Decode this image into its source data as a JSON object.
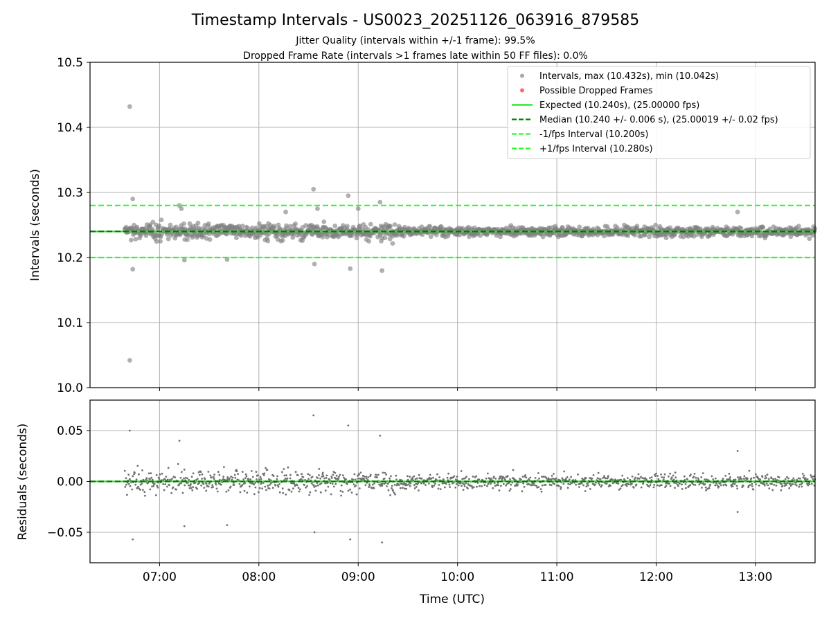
{
  "title": "Timestamp Intervals - US0023_20251126_063916_879585",
  "subtitle1": "Jitter Quality (intervals within +/-1 frame): 99.5%",
  "subtitle2": "Dropped Frame Rate (intervals >1 frames late within 50 FF files): 0.0%",
  "colors": {
    "points": "#808080",
    "dropped": "#ff6b6b",
    "expected": "#1ee61e",
    "median": "#007a00",
    "interval": "#22ff22",
    "grid": "#b0b0b0"
  },
  "chart_data": [
    {
      "type": "scatter",
      "panel": "intervals",
      "ylabel": "Intervals (seconds)",
      "xlabel": "",
      "ylim": [
        10.0,
        10.5
      ],
      "yticks": [
        10.0,
        10.1,
        10.2,
        10.3,
        10.4,
        10.5
      ],
      "ytick_labels": [
        "10.0",
        "10.1",
        "10.2",
        "10.3",
        "10.4",
        "10.5"
      ],
      "xlim_hours": [
        6.3,
        13.6
      ],
      "xticks_hours": [
        7,
        8,
        9,
        10,
        11,
        12,
        13
      ],
      "grid": true,
      "legend_position": "top-right",
      "legend": [
        {
          "label": "Intervals, max (10.432s), min (10.042s)",
          "style": "marker",
          "color": "#a8a8a8"
        },
        {
          "label": "Possible Dropped Frames",
          "style": "marker",
          "color": "#ff6b6b"
        },
        {
          "label": "Expected (10.240s), (25.00000 fps)",
          "style": "solid",
          "color": "#1ee61e"
        },
        {
          "label": "Median (10.240 +/- 0.006 s), (25.00019 +/- 0.02 fps)",
          "style": "dashed",
          "color": "#007a00"
        },
        {
          "label": "-1/fps Interval (10.200s)",
          "style": "dashed",
          "color": "#22ff22"
        },
        {
          "label": "+1/fps Interval (10.280s)",
          "style": "dashed",
          "color": "#22ff22"
        }
      ],
      "reference_lines": [
        {
          "name": "expected",
          "y": 10.24
        },
        {
          "name": "median",
          "y": 10.24
        },
        {
          "name": "minus_one_frame",
          "y": 10.2
        },
        {
          "name": "plus_one_frame",
          "y": 10.28
        }
      ],
      "time_range_hours": [
        6.65,
        13.6
      ],
      "median": 10.24,
      "max": 10.432,
      "min": 10.042,
      "notable_points": [
        {
          "x": 6.7,
          "y": 10.432
        },
        {
          "x": 6.7,
          "y": 10.042
        },
        {
          "x": 6.73,
          "y": 10.29
        },
        {
          "x": 6.73,
          "y": 10.182
        },
        {
          "x": 7.2,
          "y": 10.28
        },
        {
          "x": 7.22,
          "y": 10.275
        },
        {
          "x": 7.25,
          "y": 10.196
        },
        {
          "x": 7.68,
          "y": 10.197
        },
        {
          "x": 8.27,
          "y": 10.27
        },
        {
          "x": 8.55,
          "y": 10.305
        },
        {
          "x": 8.56,
          "y": 10.19
        },
        {
          "x": 8.59,
          "y": 10.275
        },
        {
          "x": 8.9,
          "y": 10.295
        },
        {
          "x": 8.92,
          "y": 10.183
        },
        {
          "x": 9.0,
          "y": 10.275
        },
        {
          "x": 9.22,
          "y": 10.285
        },
        {
          "x": 9.24,
          "y": 10.18
        },
        {
          "x": 12.82,
          "y": 10.27
        }
      ]
    },
    {
      "type": "scatter",
      "panel": "residuals",
      "ylabel": "Residuals (seconds)",
      "xlabel": "Time (UTC)",
      "ylim": [
        -0.08,
        0.08
      ],
      "yticks": [
        -0.05,
        0.0,
        0.05
      ],
      "ytick_labels": [
        "−0.05",
        "0.00",
        "0.05"
      ],
      "xlim_hours": [
        6.3,
        13.6
      ],
      "xticks_hours": [
        7,
        8,
        9,
        10,
        11,
        12,
        13
      ],
      "xtick_labels": [
        "07:00",
        "08:00",
        "09:00",
        "10:00",
        "11:00",
        "12:00",
        "13:00"
      ],
      "grid": true,
      "reference_lines": [
        {
          "name": "zero",
          "y": 0.0
        }
      ],
      "notable_points": [
        {
          "x": 6.7,
          "y": 0.05
        },
        {
          "x": 6.73,
          "y": -0.057
        },
        {
          "x": 7.2,
          "y": 0.04
        },
        {
          "x": 7.25,
          "y": -0.044
        },
        {
          "x": 7.68,
          "y": -0.043
        },
        {
          "x": 8.55,
          "y": 0.065
        },
        {
          "x": 8.56,
          "y": -0.05
        },
        {
          "x": 8.9,
          "y": 0.055
        },
        {
          "x": 8.92,
          "y": -0.057
        },
        {
          "x": 9.22,
          "y": 0.045
        },
        {
          "x": 9.24,
          "y": -0.06
        },
        {
          "x": 12.82,
          "y": 0.03
        },
        {
          "x": 12.82,
          "y": -0.03
        }
      ]
    }
  ]
}
